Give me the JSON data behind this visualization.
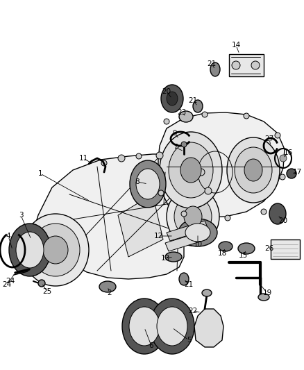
{
  "background_color": "#ffffff",
  "line_color": "#000000",
  "text_color": "#000000",
  "label_fontsize": 7.5
}
